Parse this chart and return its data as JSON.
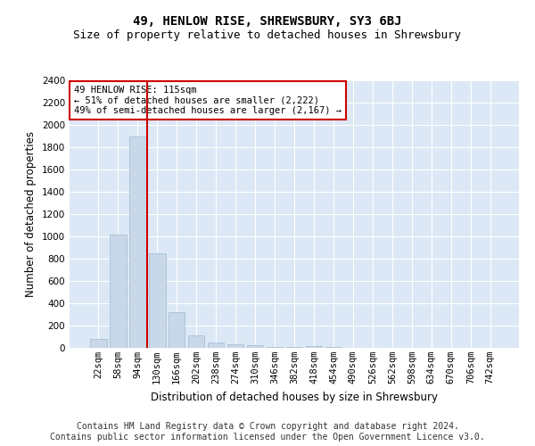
{
  "title": "49, HENLOW RISE, SHREWSBURY, SY3 6BJ",
  "subtitle": "Size of property relative to detached houses in Shrewsbury",
  "xlabel": "Distribution of detached houses by size in Shrewsbury",
  "ylabel": "Number of detached properties",
  "bins": [
    "22sqm",
    "58sqm",
    "94sqm",
    "130sqm",
    "166sqm",
    "202sqm",
    "238sqm",
    "274sqm",
    "310sqm",
    "346sqm",
    "382sqm",
    "418sqm",
    "454sqm",
    "490sqm",
    "526sqm",
    "562sqm",
    "598sqm",
    "634sqm",
    "670sqm",
    "706sqm",
    "742sqm"
  ],
  "values": [
    80,
    1020,
    1900,
    850,
    320,
    110,
    50,
    35,
    25,
    10,
    5,
    15,
    5,
    2,
    1,
    1,
    0,
    0,
    0,
    0,
    0
  ],
  "bar_color": "#c8d8e8",
  "bar_edge_color": "#a0b8d0",
  "vline_color": "#cc0000",
  "vline_x_index": 2.5,
  "annotation_box_text": "49 HENLOW RISE: 115sqm\n← 51% of detached houses are smaller (2,222)\n49% of semi-detached houses are larger (2,167) →",
  "annotation_box_color": "#cc0000",
  "ylim": [
    0,
    2400
  ],
  "yticks": [
    0,
    200,
    400,
    600,
    800,
    1000,
    1200,
    1400,
    1600,
    1800,
    2000,
    2200,
    2400
  ],
  "footer_line1": "Contains HM Land Registry data © Crown copyright and database right 2024.",
  "footer_line2": "Contains public sector information licensed under the Open Government Licence v3.0.",
  "plot_bg_color": "#dce8f5",
  "title_fontsize": 10,
  "subtitle_fontsize": 9,
  "label_fontsize": 8.5,
  "tick_fontsize": 7.5,
  "footer_fontsize": 7,
  "ann_fontsize": 7.5
}
